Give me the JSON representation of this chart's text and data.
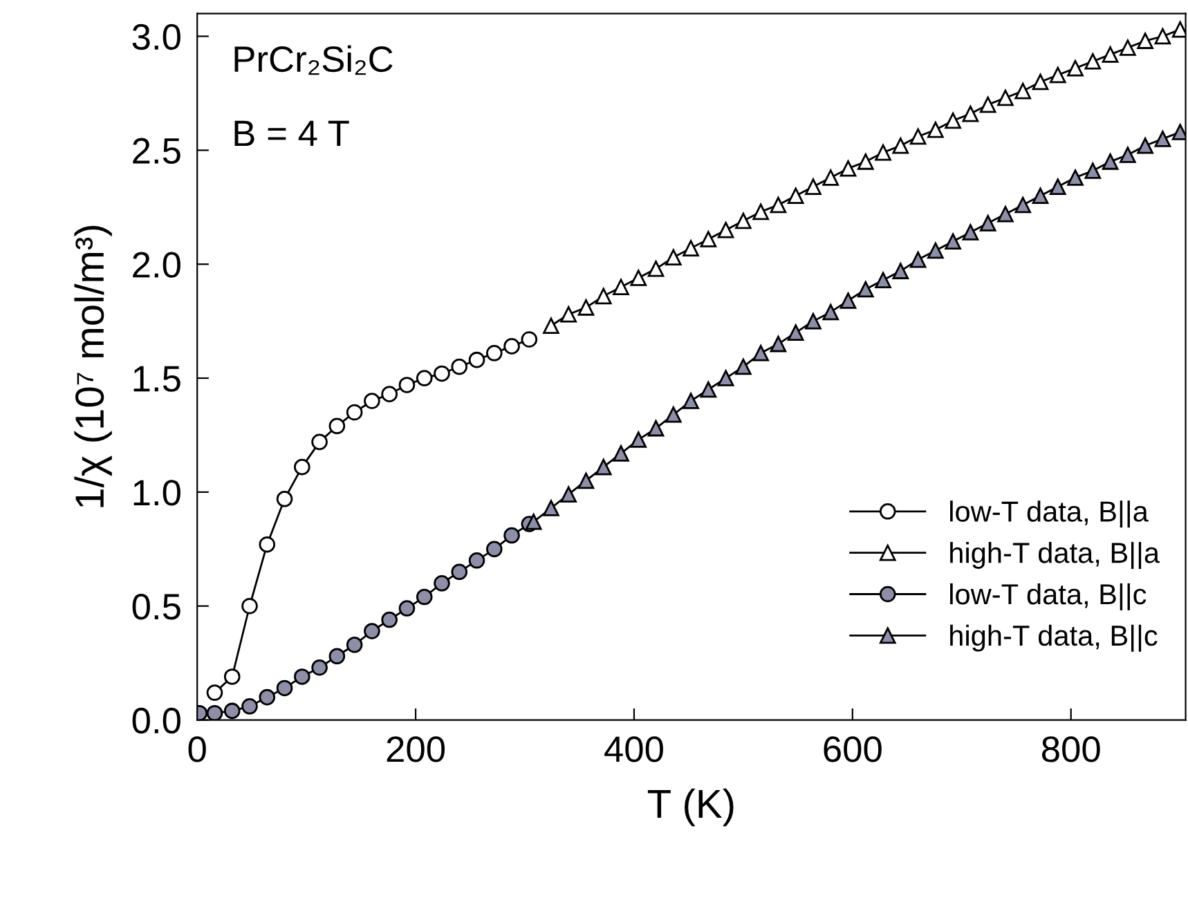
{
  "chart_data": {
    "type": "line",
    "xlabel": "T (K)",
    "ylabel": "1/χ (10⁷ mol/m³)",
    "annotations": [
      "PrCr₂Si₂C",
      "B = 4 T"
    ],
    "xlim": [
      0,
      905
    ],
    "xticks": [
      0,
      200,
      400,
      600,
      800
    ],
    "ylim": [
      0,
      3.1
    ],
    "yticks": [
      {
        "value": 0,
        "label": "0.0"
      },
      {
        "value": 0.5,
        "label": "0.5"
      },
      {
        "value": 1.0,
        "label": "1.0"
      },
      {
        "value": 1.5,
        "label": "1.5"
      },
      {
        "value": 2.0,
        "label": "2.0"
      },
      {
        "value": 2.5,
        "label": "2.5"
      },
      {
        "value": 3.0,
        "label": "3.0"
      }
    ],
    "grid": false,
    "legend": "bottom right",
    "line_style": "solid",
    "series": [
      {
        "name": "low-T data, B||a",
        "marker": "circle",
        "color": "#ffffff",
        "x": [
          16,
          32,
          48,
          64,
          80,
          96,
          112,
          128,
          144,
          160,
          176,
          192,
          208,
          224,
          240,
          256,
          272,
          288,
          304
        ],
        "values": [
          0.12,
          0.19,
          0.5,
          0.77,
          0.97,
          1.11,
          1.22,
          1.29,
          1.35,
          1.4,
          1.43,
          1.47,
          1.5,
          1.52,
          1.55,
          1.58,
          1.61,
          1.64,
          1.67
        ]
      },
      {
        "name": "high-T data, B||a",
        "marker": "triangle",
        "color": "#ffffff",
        "x": [
          324,
          340,
          356,
          372,
          388,
          404,
          420,
          436,
          452,
          468,
          484,
          500,
          516,
          532,
          548,
          564,
          580,
          596,
          612,
          628,
          644,
          660,
          676,
          692,
          708,
          724,
          740,
          756,
          772,
          788,
          804,
          820,
          836,
          852,
          868,
          884,
          900
        ],
        "values": [
          1.73,
          1.78,
          1.81,
          1.86,
          1.9,
          1.94,
          1.98,
          2.03,
          2.07,
          2.11,
          2.15,
          2.19,
          2.23,
          2.26,
          2.3,
          2.34,
          2.38,
          2.42,
          2.45,
          2.49,
          2.52,
          2.56,
          2.59,
          2.63,
          2.66,
          2.7,
          2.73,
          2.76,
          2.8,
          2.83,
          2.86,
          2.89,
          2.92,
          2.95,
          2.98,
          3.0,
          3.03
        ]
      },
      {
        "name": "low-T data, B||c",
        "marker": "circle",
        "color": "#8e8ea8",
        "x": [
          2,
          16,
          32,
          48,
          64,
          80,
          96,
          112,
          128,
          144,
          160,
          176,
          192,
          208,
          224,
          240,
          256,
          272,
          288,
          304
        ],
        "values": [
          0.03,
          0.03,
          0.04,
          0.06,
          0.1,
          0.14,
          0.19,
          0.23,
          0.28,
          0.33,
          0.39,
          0.44,
          0.49,
          0.54,
          0.6,
          0.65,
          0.7,
          0.75,
          0.81,
          0.86
        ]
      },
      {
        "name": "high-T data, B||c",
        "marker": "triangle",
        "color": "#8e8ea8",
        "x": [
          308,
          324,
          340,
          356,
          372,
          388,
          404,
          420,
          436,
          452,
          468,
          484,
          500,
          516,
          532,
          548,
          564,
          580,
          596,
          612,
          628,
          644,
          660,
          676,
          692,
          708,
          724,
          740,
          756,
          772,
          788,
          804,
          820,
          836,
          852,
          868,
          884,
          900
        ],
        "values": [
          0.87,
          0.93,
          0.99,
          1.05,
          1.11,
          1.17,
          1.23,
          1.28,
          1.34,
          1.4,
          1.45,
          1.5,
          1.55,
          1.61,
          1.65,
          1.7,
          1.75,
          1.79,
          1.84,
          1.89,
          1.93,
          1.97,
          2.02,
          2.06,
          2.1,
          2.14,
          2.18,
          2.22,
          2.26,
          2.3,
          2.34,
          2.38,
          2.41,
          2.45,
          2.48,
          2.52,
          2.55,
          2.58
        ]
      }
    ]
  }
}
